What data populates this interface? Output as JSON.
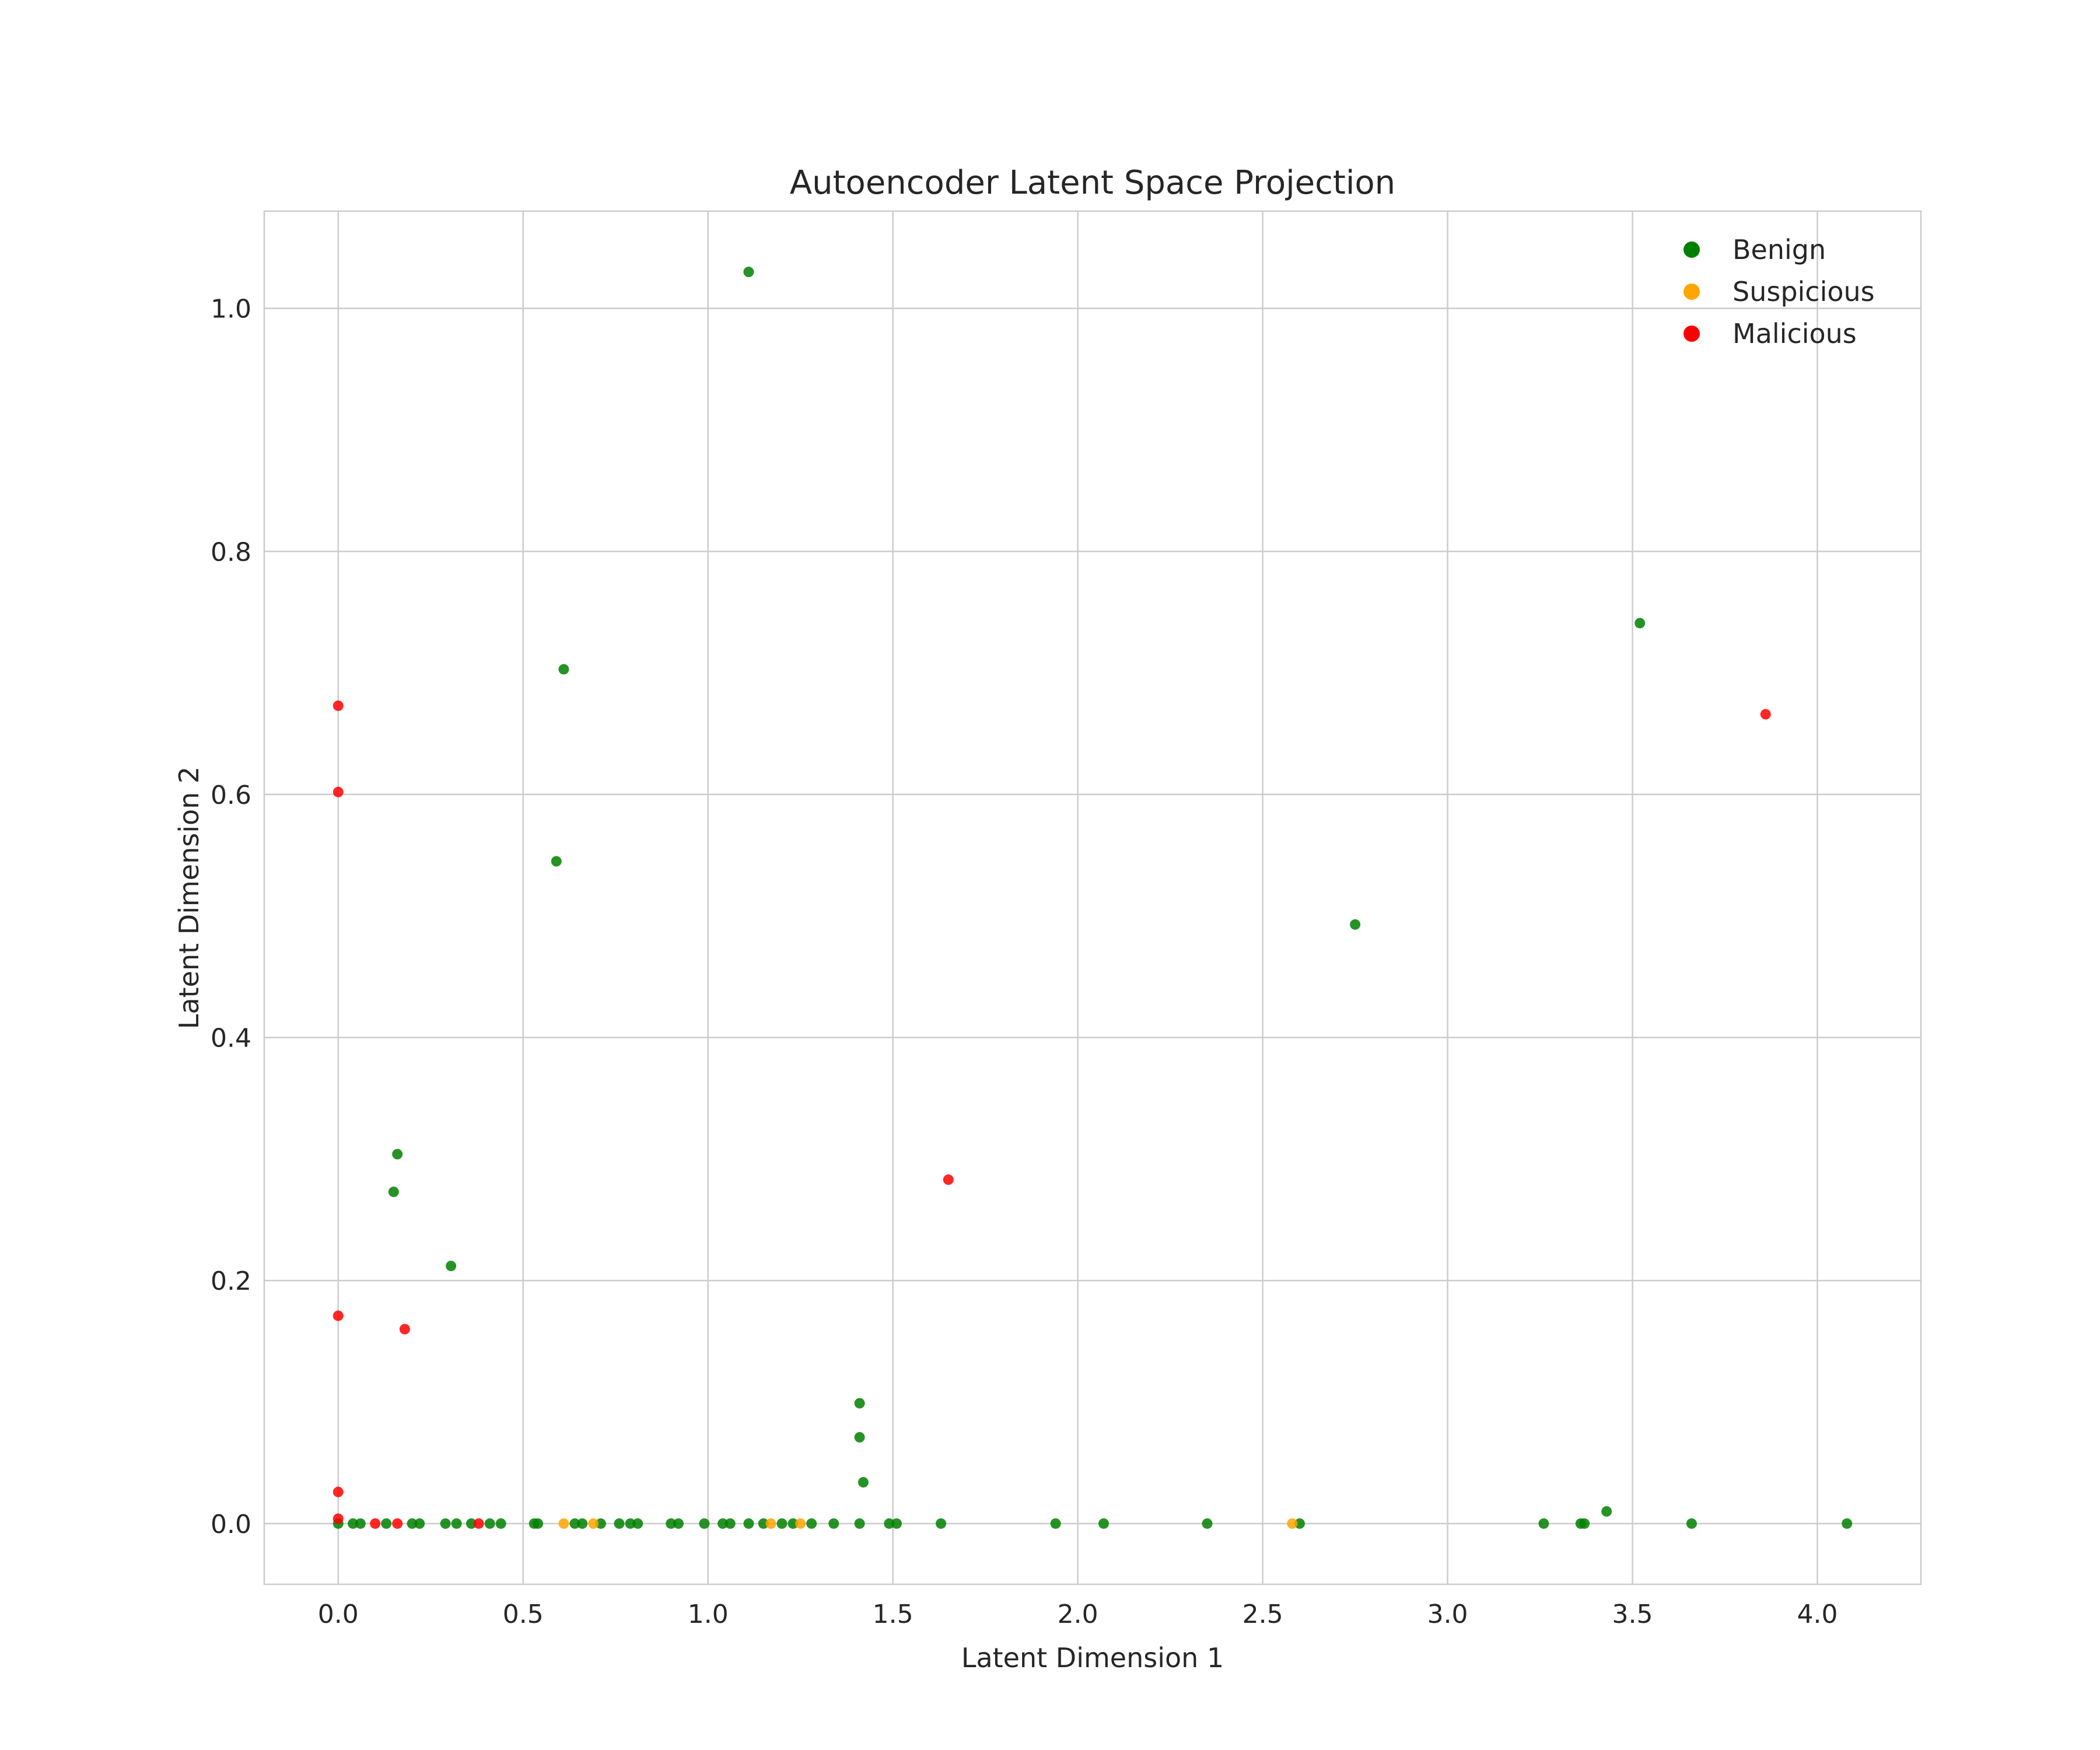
{
  "chart_data": {
    "type": "scatter",
    "title": "Autoencoder Latent Space Projection",
    "xlabel": "Latent Dimension 1",
    "ylabel": "Latent Dimension 2",
    "xlim": [
      -0.2,
      4.28
    ],
    "ylim": [
      -0.05,
      1.08
    ],
    "xticks": [
      "0.0",
      "0.5",
      "1.0",
      "1.5",
      "2.0",
      "2.5",
      "3.0",
      "3.5",
      "4.0"
    ],
    "yticks": [
      "0.0",
      "0.2",
      "0.4",
      "0.6",
      "0.8",
      "1.0"
    ],
    "grid": true,
    "legend_position": "top-right",
    "series": [
      {
        "name": "Benign",
        "color": "#008000",
        "points": [
          [
            1.11,
            1.03
          ],
          [
            0.61,
            0.703
          ],
          [
            0.59,
            0.545
          ],
          [
            3.52,
            0.741
          ],
          [
            2.75,
            0.493
          ],
          [
            0.16,
            0.304
          ],
          [
            0.15,
            0.273
          ],
          [
            0.305,
            0.212
          ],
          [
            1.41,
            0.099
          ],
          [
            1.41,
            0.071
          ],
          [
            1.42,
            0.034
          ],
          [
            3.43,
            0.01
          ],
          [
            0.0,
            0.0
          ],
          [
            0.04,
            0.0
          ],
          [
            0.06,
            0.0
          ],
          [
            0.13,
            0.0
          ],
          [
            0.2,
            0.0
          ],
          [
            0.22,
            0.0
          ],
          [
            0.29,
            0.0
          ],
          [
            0.32,
            0.0
          ],
          [
            0.36,
            0.0
          ],
          [
            0.41,
            0.0
          ],
          [
            0.44,
            0.0
          ],
          [
            0.53,
            0.0
          ],
          [
            0.54,
            0.0
          ],
          [
            0.64,
            0.0
          ],
          [
            0.66,
            0.0
          ],
          [
            0.71,
            0.0
          ],
          [
            0.76,
            0.0
          ],
          [
            0.79,
            0.0
          ],
          [
            0.81,
            0.0
          ],
          [
            0.9,
            0.0
          ],
          [
            0.92,
            0.0
          ],
          [
            0.99,
            0.0
          ],
          [
            1.04,
            0.0
          ],
          [
            1.06,
            0.0
          ],
          [
            1.11,
            0.0
          ],
          [
            1.15,
            0.0
          ],
          [
            1.2,
            0.0
          ],
          [
            1.23,
            0.0
          ],
          [
            1.28,
            0.0
          ],
          [
            1.34,
            0.0
          ],
          [
            1.41,
            0.0
          ],
          [
            1.49,
            0.0
          ],
          [
            1.51,
            0.0
          ],
          [
            1.63,
            0.0
          ],
          [
            1.94,
            0.0
          ],
          [
            2.07,
            0.0
          ],
          [
            2.35,
            0.0
          ],
          [
            2.6,
            0.0
          ],
          [
            3.26,
            0.0
          ],
          [
            3.36,
            0.0
          ],
          [
            3.37,
            0.0
          ],
          [
            3.66,
            0.0
          ],
          [
            4.08,
            0.0
          ]
        ]
      },
      {
        "name": "Suspicious",
        "color": "#ffa500",
        "points": [
          [
            0.61,
            0.0
          ],
          [
            0.69,
            0.0
          ],
          [
            1.17,
            0.0
          ],
          [
            1.25,
            0.0
          ],
          [
            2.58,
            0.0
          ]
        ]
      },
      {
        "name": "Malicious",
        "color": "#ff0000",
        "points": [
          [
            0.0,
            0.673
          ],
          [
            0.0,
            0.602
          ],
          [
            3.86,
            0.666
          ],
          [
            1.65,
            0.283
          ],
          [
            0.0,
            0.171
          ],
          [
            0.18,
            0.16
          ],
          [
            0.0,
            0.026
          ],
          [
            0.0,
            0.004
          ],
          [
            0.1,
            0.0
          ],
          [
            0.16,
            0.0
          ],
          [
            0.38,
            0.0
          ]
        ]
      }
    ]
  }
}
